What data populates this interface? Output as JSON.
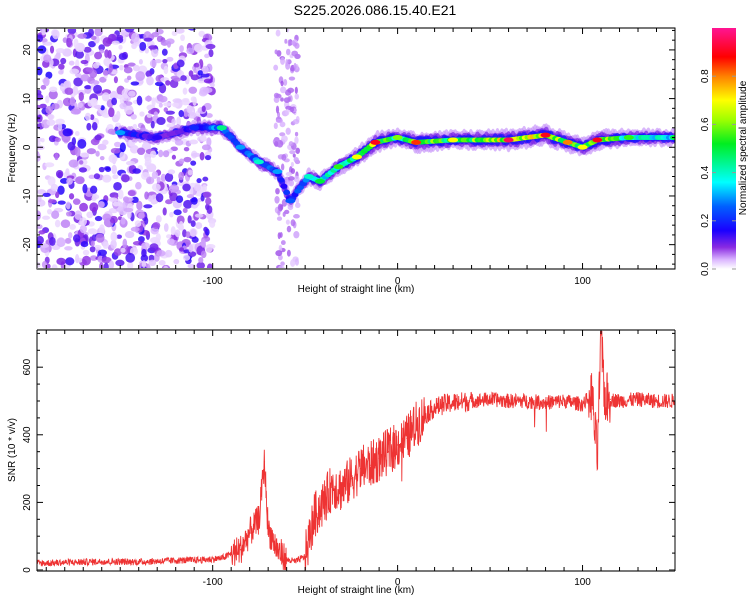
{
  "chart_data": [
    {
      "type": "heatmap",
      "title": "S225.2026.086.15.40.E21",
      "xlabel": "Height of straight line (km)",
      "ylabel": "Frequency (Hz)",
      "xlim": [
        -195,
        150
      ],
      "ylim": [
        -25,
        24.5
      ],
      "xticks": [
        -100,
        0,
        100
      ],
      "yticks": [
        -20,
        -10,
        0,
        10,
        20
      ],
      "colorbar": {
        "label": "Normalized spectral amplitude",
        "range": [
          0.0,
          1.0
        ],
        "ticks": [
          "0.0",
          "0.2",
          "0.4",
          "0.6",
          "0.8"
        ],
        "colormap": [
          "#ffffff",
          "#d9b3ff",
          "#8a2be2",
          "#1a00ff",
          "#0080ff",
          "#00ffff",
          "#00ff40",
          "#a0ff00",
          "#ffff00",
          "#ff8000",
          "#ff0000",
          "#ff1493"
        ]
      },
      "ridge": {
        "description": "dominant frequency ridge",
        "points": [
          {
            "x": -150,
            "y": 3,
            "amp": 0.3
          },
          {
            "x": -130,
            "y": 2,
            "amp": 0.15
          },
          {
            "x": -110,
            "y": 4,
            "amp": 0.2
          },
          {
            "x": -95,
            "y": 4,
            "amp": 0.45
          },
          {
            "x": -85,
            "y": 0,
            "amp": 0.3
          },
          {
            "x": -75,
            "y": -3,
            "amp": 0.4
          },
          {
            "x": -65,
            "y": -5,
            "amp": 0.3
          },
          {
            "x": -58,
            "y": -11,
            "amp": 0.25
          },
          {
            "x": -48,
            "y": -6,
            "amp": 0.4
          },
          {
            "x": -42,
            "y": -7,
            "amp": 0.5
          },
          {
            "x": -32,
            "y": -4,
            "amp": 0.55
          },
          {
            "x": -22,
            "y": -2,
            "amp": 0.7
          },
          {
            "x": -12,
            "y": 1,
            "amp": 0.9
          },
          {
            "x": 0,
            "y": 2,
            "amp": 0.6
          },
          {
            "x": 10,
            "y": 1,
            "amp": 0.85
          },
          {
            "x": 30,
            "y": 1.5,
            "amp": 0.7
          },
          {
            "x": 60,
            "y": 1.5,
            "amp": 0.95
          },
          {
            "x": 80,
            "y": 2.5,
            "amp": 0.9
          },
          {
            "x": 92,
            "y": 1,
            "amp": 0.8
          },
          {
            "x": 100,
            "y": 0,
            "amp": 0.7
          },
          {
            "x": 108,
            "y": 1.5,
            "amp": 0.9
          },
          {
            "x": 125,
            "y": 2,
            "amp": 0.55
          },
          {
            "x": 150,
            "y": 2,
            "amp": 0.5
          }
        ]
      }
    },
    {
      "type": "line",
      "xlabel": "Height of straight line (km)",
      "ylabel": "SNR (10 * v/v)",
      "xlim": [
        -195,
        150
      ],
      "ylim": [
        0,
        710
      ],
      "xticks": [
        -100,
        0,
        100
      ],
      "yticks": [
        0,
        200,
        400,
        600
      ],
      "line_color": "#ee3333",
      "series": [
        {
          "name": "SNR",
          "x": [
            -195,
            -180,
            -160,
            -140,
            -120,
            -105,
            -95,
            -85,
            -80,
            -75,
            -72,
            -70,
            -65,
            -60,
            -55,
            -50,
            -45,
            -40,
            -35,
            -30,
            -25,
            -20,
            -15,
            -10,
            -5,
            0,
            5,
            10,
            15,
            20,
            25,
            30,
            40,
            50,
            60,
            70,
            80,
            90,
            100,
            105,
            108,
            110,
            112,
            115,
            120,
            130,
            140,
            150
          ],
          "y": [
            20,
            22,
            25,
            24,
            28,
            30,
            35,
            60,
            110,
            150,
            320,
            120,
            60,
            30,
            25,
            40,
            160,
            200,
            250,
            240,
            270,
            300,
            310,
            330,
            350,
            370,
            390,
            430,
            460,
            480,
            490,
            495,
            500,
            505,
            500,
            500,
            495,
            500,
            490,
            520,
            330,
            700,
            510,
            505,
            500,
            505,
            500,
            500
          ]
        }
      ]
    }
  ]
}
